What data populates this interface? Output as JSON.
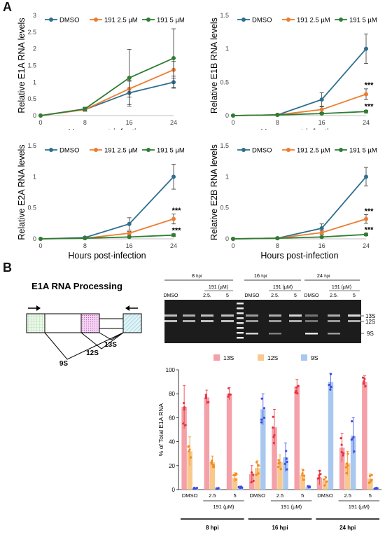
{
  "panels": {
    "a": "A",
    "b": "B"
  },
  "legend": {
    "dmso": "DMSO",
    "low": "191 2.5 µM",
    "high": "191 5 µM"
  },
  "colors": {
    "dmso": "#2e6e8e",
    "low": "#ed7d31",
    "high": "#2e7d32",
    "s13": "#f4a0a8",
    "s12": "#f8c98e",
    "s9": "#a9c8f0",
    "s13dot": "#e8323f",
    "s12dot": "#f28c1c",
    "s9dot": "#3b4de6"
  },
  "chart_data": [
    {
      "type": "line",
      "title": "",
      "xlabel": "Hours post-infection",
      "ylabel": "Relative E1A RNA levels",
      "x": [
        0,
        8,
        16,
        24
      ],
      "ylim": [
        0,
        3
      ],
      "yticks": [
        "0",
        "0.5",
        "1",
        "1.5",
        "2",
        "2.5",
        "3"
      ],
      "ytick_values": [
        0,
        0.5,
        1,
        1.5,
        2,
        2.5,
        3
      ],
      "series": [
        {
          "name": "DMSO",
          "values": [
            0,
            0.18,
            0.68,
            1.0
          ],
          "err": [
            0,
            0.05,
            0.35,
            0.18
          ]
        },
        {
          "name": "191 2.5 µM",
          "values": [
            0,
            0.18,
            0.8,
            1.37
          ],
          "err": [
            0,
            0.05,
            0.25,
            0.25
          ]
        },
        {
          "name": "191 5 µM",
          "values": [
            0,
            0.2,
            1.13,
            1.72
          ],
          "err": [
            0,
            0.05,
            0.85,
            0.88
          ]
        }
      ],
      "annotations": []
    },
    {
      "type": "line",
      "title": "",
      "xlabel": "Hours post-infection",
      "ylabel": "Relative E1B RNA levels",
      "x": [
        0,
        8,
        16,
        24
      ],
      "ylim": [
        0,
        1.5
      ],
      "yticks": [
        "0",
        "0.5",
        "1",
        "1.5"
      ],
      "ytick_values": [
        0,
        0.5,
        1,
        1.5
      ],
      "series": [
        {
          "name": "DMSO",
          "values": [
            0,
            0.01,
            0.24,
            1.0
          ],
          "err": [
            0,
            0.01,
            0.1,
            0.22
          ]
        },
        {
          "name": "191 2.5 µM",
          "values": [
            0,
            0.01,
            0.09,
            0.32
          ],
          "err": [
            0,
            0.01,
            0.04,
            0.08
          ]
        },
        {
          "name": "191 5 µM",
          "values": [
            0,
            0.01,
            0.03,
            0.06
          ],
          "err": [
            0,
            0.005,
            0.01,
            0.02
          ]
        }
      ],
      "annotations": [
        {
          "text": "***",
          "x": 24,
          "y": 0.46
        },
        {
          "text": "***",
          "x": 24,
          "y": 0.14
        }
      ]
    },
    {
      "type": "line",
      "title": "",
      "xlabel": "Hours post-infection",
      "ylabel": "Relative E2A RNA levels",
      "x": [
        0,
        8,
        16,
        24
      ],
      "ylim": [
        0,
        1.5
      ],
      "yticks": [
        "0",
        "0.5",
        "1",
        "1.5"
      ],
      "ytick_values": [
        0,
        0.5,
        1,
        1.5
      ],
      "series": [
        {
          "name": "DMSO",
          "values": [
            0,
            0.02,
            0.24,
            1.0
          ],
          "err": [
            0,
            0.01,
            0.1,
            0.2
          ]
        },
        {
          "name": "191 2.5 µM",
          "values": [
            0,
            0.01,
            0.09,
            0.32
          ],
          "err": [
            0,
            0.01,
            0.03,
            0.08
          ]
        },
        {
          "name": "191 5 µM",
          "values": [
            0,
            0.01,
            0.03,
            0.06
          ],
          "err": [
            0,
            0.005,
            0.01,
            0.02
          ]
        }
      ],
      "annotations": [
        {
          "text": "***",
          "x": 24,
          "y": 0.46
        },
        {
          "text": "***",
          "x": 24,
          "y": 0.14
        }
      ]
    },
    {
      "type": "line",
      "title": "",
      "xlabel": "Hours post-infection",
      "ylabel": "Relative E2B RNA levels",
      "x": [
        0,
        8,
        16,
        24
      ],
      "ylim": [
        0,
        1.5
      ],
      "yticks": [
        "0",
        "0.5",
        "1",
        "1.5"
      ],
      "ytick_values": [
        0,
        0.5,
        1,
        1.5
      ],
      "series": [
        {
          "name": "DMSO",
          "values": [
            0,
            0.01,
            0.17,
            1.0
          ],
          "err": [
            0,
            0.01,
            0.07,
            0.15
          ]
        },
        {
          "name": "191 2.5 µM",
          "values": [
            0,
            0.01,
            0.1,
            0.32
          ],
          "err": [
            0,
            0.01,
            0.03,
            0.07
          ]
        },
        {
          "name": "191 5 µM",
          "values": [
            0,
            0.01,
            0.03,
            0.07
          ],
          "err": [
            0,
            0.005,
            0.01,
            0.02
          ]
        }
      ],
      "annotations": [
        {
          "text": "***",
          "x": 24,
          "y": 0.45
        },
        {
          "text": "***",
          "x": 24,
          "y": 0.15
        }
      ]
    },
    {
      "type": "bar",
      "title": "",
      "ylabel": "% of Total E1A RNA",
      "ylim": [
        0,
        100
      ],
      "yticks": [
        "0",
        "20",
        "40",
        "60",
        "80",
        "100"
      ],
      "ytick_values": [
        0,
        20,
        40,
        60,
        80,
        100
      ],
      "legend": [
        "13S",
        "12S",
        "9S"
      ],
      "group_labels": [
        "DMSO",
        "2.5",
        "5",
        "DMSO",
        "2.5",
        "5",
        "DMSO",
        "2.5",
        "5"
      ],
      "sub_labels": [
        "191 (µM)",
        "191 (µM)",
        "191 (µM)"
      ],
      "time_labels": [
        "8 hpi",
        "16 hpi",
        "24 hpi"
      ],
      "series": [
        {
          "name": "13S",
          "values": [
            69,
            77,
            80,
            13,
            52,
            86,
            10,
            35,
            90
          ],
          "err": [
            18,
            6,
            5,
            7,
            15,
            6,
            6,
            12,
            5
          ]
        },
        {
          "name": "12S",
          "values": [
            32,
            23,
            10,
            18,
            23,
            12,
            7,
            22,
            9
          ],
          "err": [
            12,
            5,
            4,
            6,
            6,
            5,
            4,
            10,
            4
          ]
        },
        {
          "name": "9S",
          "values": [
            1,
            1,
            2,
            67,
            27,
            2,
            90,
            45,
            1
          ],
          "err": [
            0.5,
            0.5,
            1,
            13,
            12,
            1,
            7,
            15,
            0.5
          ]
        }
      ]
    }
  ],
  "gel": {
    "title": "E1A RNA Processing",
    "time_labels": [
      "8 hpi",
      "16 hpi",
      "24 hpi"
    ],
    "hpi_unit": "hpi",
    "hours": [
      "8",
      "16",
      "24"
    ],
    "drug_label": "191 (µM)",
    "lane_labels": [
      "DMSO",
      "2.5.",
      "5"
    ],
    "band_labels": [
      "13S",
      "12S",
      "9S"
    ]
  },
  "diagram": {
    "splice_labels": [
      "13S",
      "12S",
      "9S"
    ]
  }
}
